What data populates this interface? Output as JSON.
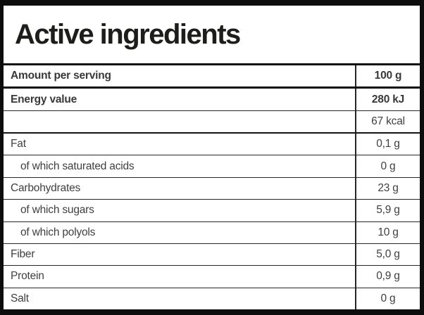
{
  "title": "Active ingredients",
  "colors": {
    "border": "#0d0d0d",
    "text": "#3f3f3f",
    "title_text": "#1d1d1b"
  },
  "table": {
    "rows": [
      {
        "label": "Amount per serving",
        "value": "100 g",
        "bold": true,
        "sub": false,
        "divider": "thick"
      },
      {
        "label": "Energy value",
        "value": "280 kJ",
        "bold": true,
        "sub": false,
        "divider": "normal"
      },
      {
        "label": "",
        "value": "67 kcal",
        "bold": false,
        "sub": false,
        "divider": "medium"
      },
      {
        "label": "Fat",
        "value": "0,1 g",
        "bold": false,
        "sub": false,
        "divider": "normal"
      },
      {
        "label": "of which saturated acids",
        "value": "0 g",
        "bold": false,
        "sub": true,
        "divider": "normal"
      },
      {
        "label": "Carbohydrates",
        "value": "23 g",
        "bold": false,
        "sub": false,
        "divider": "normal"
      },
      {
        "label": "of which sugars",
        "value": "5,9 g",
        "bold": false,
        "sub": true,
        "divider": "normal"
      },
      {
        "label": "of which polyols",
        "value": "10 g",
        "bold": false,
        "sub": true,
        "divider": "normal"
      },
      {
        "label": "Fiber",
        "value": "5,0 g",
        "bold": false,
        "sub": false,
        "divider": "normal"
      },
      {
        "label": "Protein",
        "value": "0,9 g",
        "bold": false,
        "sub": false,
        "divider": "normal"
      },
      {
        "label": "Salt",
        "value": "0 g",
        "bold": false,
        "sub": false,
        "divider": "normal"
      }
    ]
  }
}
